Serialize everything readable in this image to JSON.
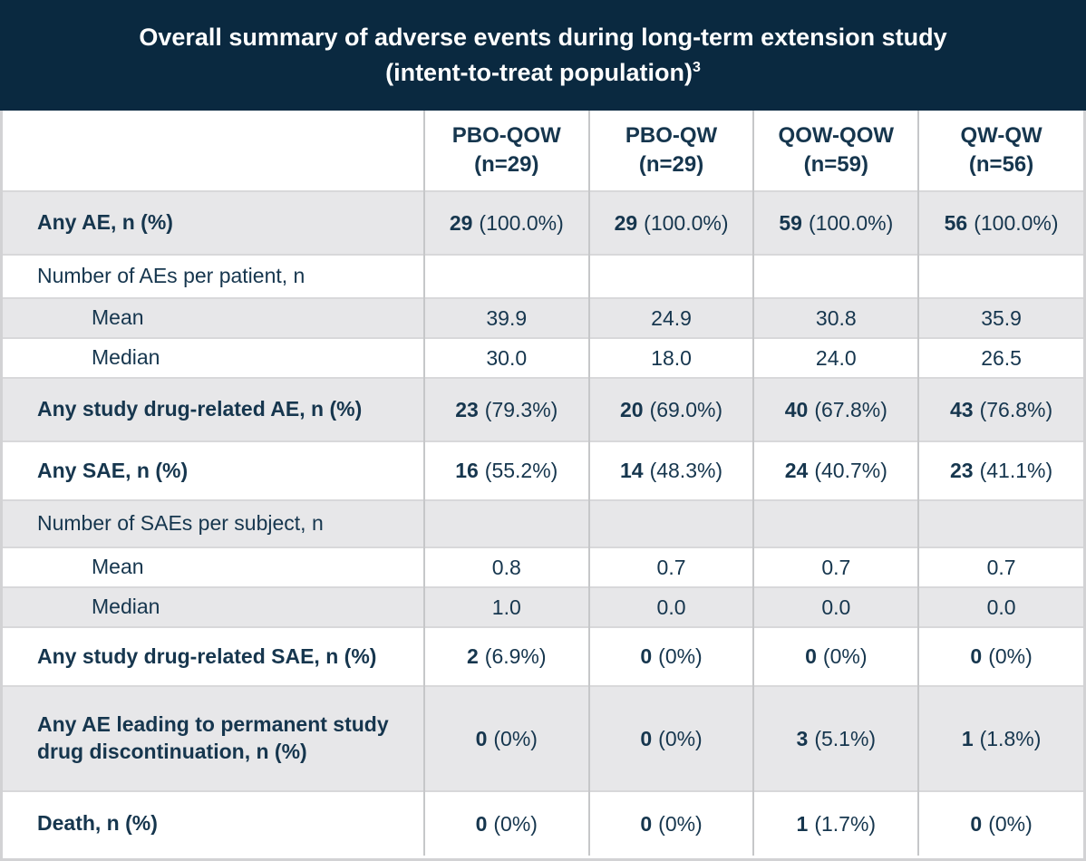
{
  "title": {
    "line1": "Overall summary of adverse events during long-term extension study",
    "line2": "(intent-to-treat population)",
    "footnote_marker": "3"
  },
  "colors": {
    "title_bg": "#0a2940",
    "text_navy": "#16364e",
    "row_alt_bg": "#e7e7e9"
  },
  "table": {
    "columns": [
      {
        "label": "PBO-QOW",
        "n": "(n=29)"
      },
      {
        "label": "PBO-QW",
        "n": "(n=29)"
      },
      {
        "label": "QOW-QOW",
        "n": "(n=59)"
      },
      {
        "label": "QW-QW",
        "n": "(n=56)"
      }
    ],
    "rows": [
      {
        "label": "Any AE, n (%)",
        "emphasis": true,
        "indent": false,
        "values": [
          {
            "n": "29",
            "pct": "(100.0%)"
          },
          {
            "n": "29",
            "pct": "(100.0%)"
          },
          {
            "n": "59",
            "pct": "(100.0%)"
          },
          {
            "n": "56",
            "pct": "(100.0%)"
          }
        ]
      },
      {
        "label": "Number of AEs per patient, n",
        "emphasis": false,
        "indent": false,
        "values": [
          {
            "n": "",
            "pct": ""
          },
          {
            "n": "",
            "pct": ""
          },
          {
            "n": "",
            "pct": ""
          },
          {
            "n": "",
            "pct": ""
          }
        ]
      },
      {
        "label": "Mean",
        "emphasis": false,
        "indent": true,
        "values": [
          {
            "n": "39.9",
            "pct": ""
          },
          {
            "n": "24.9",
            "pct": ""
          },
          {
            "n": "30.8",
            "pct": ""
          },
          {
            "n": "35.9",
            "pct": ""
          }
        ]
      },
      {
        "label": "Median",
        "emphasis": false,
        "indent": true,
        "values": [
          {
            "n": "30.0",
            "pct": ""
          },
          {
            "n": "18.0",
            "pct": ""
          },
          {
            "n": "24.0",
            "pct": ""
          },
          {
            "n": "26.5",
            "pct": ""
          }
        ]
      },
      {
        "label": "Any study drug-related AE, n (%)",
        "emphasis": true,
        "indent": false,
        "values": [
          {
            "n": "23",
            "pct": "(79.3%)"
          },
          {
            "n": "20",
            "pct": "(69.0%)"
          },
          {
            "n": "40",
            "pct": "(67.8%)"
          },
          {
            "n": "43",
            "pct": "(76.8%)"
          }
        ]
      },
      {
        "label": "Any SAE, n (%)",
        "emphasis": true,
        "indent": false,
        "values": [
          {
            "n": "16",
            "pct": "(55.2%)"
          },
          {
            "n": "14",
            "pct": "(48.3%)"
          },
          {
            "n": "24",
            "pct": "(40.7%)"
          },
          {
            "n": "23",
            "pct": "(41.1%)"
          }
        ]
      },
      {
        "label": "Number of SAEs per subject, n",
        "emphasis": false,
        "indent": false,
        "values": [
          {
            "n": "",
            "pct": ""
          },
          {
            "n": "",
            "pct": ""
          },
          {
            "n": "",
            "pct": ""
          },
          {
            "n": "",
            "pct": ""
          }
        ]
      },
      {
        "label": "Mean",
        "emphasis": false,
        "indent": true,
        "values": [
          {
            "n": "0.8",
            "pct": ""
          },
          {
            "n": "0.7",
            "pct": ""
          },
          {
            "n": "0.7",
            "pct": ""
          },
          {
            "n": "0.7",
            "pct": ""
          }
        ]
      },
      {
        "label": "Median",
        "emphasis": false,
        "indent": true,
        "values": [
          {
            "n": "1.0",
            "pct": ""
          },
          {
            "n": "0.0",
            "pct": ""
          },
          {
            "n": "0.0",
            "pct": ""
          },
          {
            "n": "0.0",
            "pct": ""
          }
        ]
      },
      {
        "label": "Any study drug-related SAE, n (%)",
        "emphasis": true,
        "indent": false,
        "values": [
          {
            "n": "2",
            "pct": "(6.9%)"
          },
          {
            "n": "0",
            "pct": "(0%)"
          },
          {
            "n": "0",
            "pct": "(0%)"
          },
          {
            "n": "0",
            "pct": "(0%)"
          }
        ]
      },
      {
        "label": "Any AE leading to permanent study drug discontinuation, n (%)",
        "emphasis": true,
        "indent": false,
        "values": [
          {
            "n": "0",
            "pct": "(0%)"
          },
          {
            "n": "0",
            "pct": "(0%)"
          },
          {
            "n": "3",
            "pct": "(5.1%)"
          },
          {
            "n": "1",
            "pct": "(1.8%)"
          }
        ]
      },
      {
        "label": "Death, n (%)",
        "emphasis": true,
        "indent": false,
        "values": [
          {
            "n": "0",
            "pct": "(0%)"
          },
          {
            "n": "0",
            "pct": "(0%)"
          },
          {
            "n": "1",
            "pct": "(1.7%)"
          },
          {
            "n": "0",
            "pct": "(0%)"
          }
        ]
      }
    ]
  }
}
